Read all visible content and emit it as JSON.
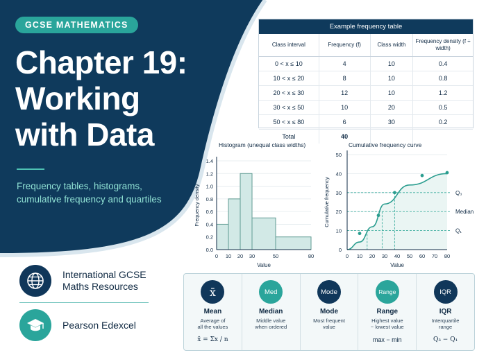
{
  "header": {
    "badge": "GCSE MATHEMATICS",
    "title_lines": [
      "Chapter 19:",
      "Working",
      "with Data"
    ],
    "subtitle_lines": [
      "Frequency tables, histograms,",
      "cumulative frequency and quartiles"
    ]
  },
  "resources": [
    {
      "icon": "globe-icon",
      "lines": [
        "International GCSE",
        "Maths Resources"
      ]
    },
    {
      "icon": "graduation-cap-icon",
      "lines": [
        "Pearson Edexcel"
      ]
    }
  ],
  "frequency_table": {
    "title": "Example frequency table",
    "columns": [
      "Class interval",
      "Frequency (f)",
      "Class width",
      "Frequency density (f ÷ width)"
    ],
    "rows": [
      [
        "0 < x ≤ 10",
        "4",
        "10",
        "0.4"
      ],
      [
        "10 < x ≤ 20",
        "8",
        "10",
        "0.8"
      ],
      [
        "20 < x ≤ 30",
        "12",
        "10",
        "1.2"
      ],
      [
        "30 < x ≤ 50",
        "10",
        "20",
        "0.5"
      ],
      [
        "50 < x ≤ 80",
        "6",
        "30",
        "0.2"
      ]
    ],
    "total_label": "Total",
    "total_value": "40"
  },
  "chart_data": [
    {
      "type": "bar",
      "title": "Histogram (unequal class widths)",
      "xlabel": "Value",
      "ylabel": "Frequency density",
      "bins": [
        {
          "from": 0,
          "to": 10,
          "density": 0.4
        },
        {
          "from": 10,
          "to": 20,
          "density": 0.8
        },
        {
          "from": 20,
          "to": 30,
          "density": 1.2
        },
        {
          "from": 30,
          "to": 50,
          "density": 0.5
        },
        {
          "from": 50,
          "to": 80,
          "density": 0.2
        }
      ],
      "xticks": [
        0,
        10,
        20,
        30,
        50,
        80
      ],
      "yticks": [
        0,
        0.2,
        0.4,
        0.6,
        0.8,
        1.0,
        1.2,
        1.4
      ],
      "xlim": [
        0,
        80
      ],
      "ylim": [
        0,
        1.4
      ],
      "colors": {
        "fill": "#d2e9e6",
        "stroke": "#5f9a92"
      }
    },
    {
      "type": "line",
      "title": "Cumulative frequency curve",
      "xlabel": "Value",
      "ylabel": "Cumulative frequency",
      "points": [
        {
          "x": 0,
          "y": 0
        },
        {
          "x": 10,
          "y": 4
        },
        {
          "x": 20,
          "y": 12
        },
        {
          "x": 30,
          "y": 24
        },
        {
          "x": 50,
          "y": 34
        },
        {
          "x": 80,
          "y": 40
        }
      ],
      "markers": [
        {
          "x": 10,
          "y": 8.5
        },
        {
          "x": 25,
          "y": 18
        },
        {
          "x": 38,
          "y": 30
        },
        {
          "x": 60,
          "y": 39
        },
        {
          "x": 80,
          "y": 40.5
        }
      ],
      "reference_lines": [
        {
          "label": "Q₃",
          "y": 30,
          "x": 38
        },
        {
          "label": "Median",
          "y": 20,
          "x": 28
        },
        {
          "label": "Q₁",
          "y": 10,
          "x": 16
        }
      ],
      "xticks": [
        0,
        10,
        20,
        30,
        40,
        50,
        60,
        70,
        80
      ],
      "yticks": [
        0,
        10,
        20,
        30,
        40,
        50
      ],
      "xlim": [
        0,
        80
      ],
      "ylim": [
        0,
        50
      ],
      "colors": {
        "line": "#2a9d8f",
        "ref": "#3fae9f"
      }
    }
  ],
  "stats": [
    {
      "icon_text": "x̄",
      "icon_color": "#10375a",
      "name": "Mean",
      "desc": [
        "Average of",
        "all the values"
      ],
      "formula": "x̄ = Σx / n"
    },
    {
      "icon_text": "Med",
      "icon_color": "#2aa59b",
      "name": "Median",
      "desc": [
        "Middle value",
        "when ordered"
      ],
      "formula": ""
    },
    {
      "icon_text": "Mode",
      "icon_color": "#10375a",
      "name": "Mode",
      "desc": [
        "Most frequent",
        "value"
      ],
      "formula": ""
    },
    {
      "icon_text": "Range",
      "icon_color": "#2aa59b",
      "name": "Range",
      "desc": [
        "Highest value",
        "− lowest value"
      ],
      "formula": "max − min"
    },
    {
      "icon_text": "IQR",
      "icon_color": "#10375a",
      "name": "IQR",
      "desc": [
        "Interquartile",
        "range"
      ],
      "formula": "Q₃ − Q₁"
    }
  ],
  "colors": {
    "navy": "#0f3a5c",
    "teal": "#2aa59b",
    "light_teal": "#8fe0d3"
  }
}
